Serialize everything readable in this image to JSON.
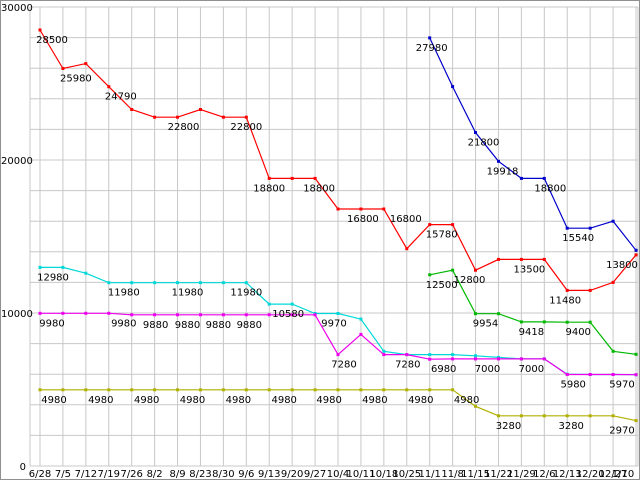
{
  "chart_data": {
    "type": "line",
    "title": "",
    "xlabel": "",
    "ylabel": "",
    "background": "#ffffff",
    "border_color": "#909090",
    "grid_color": "#c8c8c8",
    "label_color": "#000000",
    "legend": "none",
    "y_axis": {
      "min": 0,
      "max": 30000,
      "grid_step": 2000,
      "ticks": [
        {
          "v": 30000,
          "t": "30000"
        },
        {
          "v": 20000,
          "t": "20000"
        },
        {
          "v": 10000,
          "t": "10000"
        },
        {
          "v": 0,
          "t": "0"
        }
      ]
    },
    "categories": [
      "6/28",
      "7/5",
      "7/12",
      "7/19",
      "7/26",
      "8/2",
      "8/9",
      "8/23",
      "8/30",
      "9/6",
      "9/13",
      "9/20",
      "9/27",
      "10/4",
      "10/11",
      "10/18",
      "10/25",
      "11/1",
      "11/8",
      "11/15",
      "11/22",
      "11/29",
      "12/6",
      "12/13",
      "12/20",
      "12/27",
      "1/10"
    ],
    "series": [
      {
        "name": "price-red",
        "color": "#ff0000",
        "values": [
          28500,
          25980,
          26300,
          24790,
          23300,
          22800,
          22800,
          23300,
          22800,
          22800,
          18800,
          18800,
          18800,
          16800,
          16800,
          16800,
          14200,
          15780,
          15780,
          12800,
          13500,
          13500,
          13500,
          11480,
          11480,
          12000,
          13800
        ]
      },
      {
        "name": "price-blue",
        "color": "#0000cc",
        "values": [
          null,
          null,
          null,
          null,
          null,
          null,
          null,
          null,
          null,
          null,
          null,
          null,
          null,
          null,
          null,
          null,
          null,
          27980,
          24800,
          21800,
          19918,
          18800,
          18800,
          15540,
          15540,
          16000,
          14100
        ]
      },
      {
        "name": "price-cyan",
        "color": "#00d8d8",
        "values": [
          12980,
          12980,
          12600,
          11980,
          11980,
          11980,
          11980,
          11980,
          11980,
          11980,
          10580,
          10580,
          9970,
          9970,
          9600,
          7500,
          7280,
          7280,
          7280,
          7200,
          7100,
          7000,
          7000,
          6000,
          5980,
          5980,
          5970
        ]
      },
      {
        "name": "price-magenta",
        "color": "#ee00ee",
        "values": [
          9980,
          9980,
          9980,
          9980,
          9880,
          9880,
          9880,
          9880,
          9880,
          9880,
          9880,
          9880,
          9880,
          7280,
          8600,
          7280,
          7280,
          6980,
          7000,
          7000,
          7000,
          7000,
          7000,
          5980,
          5980,
          5980,
          5970
        ]
      },
      {
        "name": "price-green",
        "color": "#00b800",
        "values": [
          null,
          null,
          null,
          null,
          null,
          null,
          null,
          null,
          null,
          null,
          null,
          null,
          null,
          null,
          null,
          null,
          null,
          12500,
          12800,
          9954,
          9954,
          9418,
          9418,
          9400,
          9400,
          7500,
          7300
        ]
      },
      {
        "name": "price-olive",
        "color": "#b0b000",
        "values": [
          4980,
          4980,
          4980,
          4980,
          4980,
          4980,
          4980,
          4980,
          4980,
          4980,
          4980,
          4980,
          4980,
          4980,
          4980,
          4980,
          4980,
          4980,
          4980,
          3900,
          3280,
          3280,
          3280,
          3280,
          3280,
          3280,
          2970
        ]
      }
    ],
    "point_labels": [
      [
        0,
        0,
        "28500",
        12
      ],
      [
        0,
        1,
        "25980",
        13
      ],
      [
        0,
        3,
        "24790",
        12
      ],
      [
        0,
        6,
        "22800",
        6
      ],
      [
        0,
        9,
        "22800",
        0
      ],
      [
        0,
        10,
        "18800",
        0
      ],
      [
        0,
        12,
        "18800",
        4
      ],
      [
        0,
        14,
        "16800",
        2
      ],
      [
        0,
        15,
        "16800",
        22
      ],
      [
        0,
        17,
        "15780",
        12
      ],
      [
        0,
        19,
        "12800",
        -6
      ],
      [
        0,
        21,
        "13500",
        8
      ],
      [
        0,
        23,
        "11480",
        -2
      ],
      [
        0,
        26,
        "13800",
        -14
      ],
      [
        1,
        17,
        "27980",
        2
      ],
      [
        1,
        19,
        "21800",
        8
      ],
      [
        1,
        20,
        "19918",
        4
      ],
      [
        1,
        22,
        "18800",
        6
      ],
      [
        1,
        24,
        "15540",
        -12
      ],
      [
        2,
        0,
        "12980",
        13
      ],
      [
        2,
        3,
        "11980",
        15
      ],
      [
        2,
        6,
        "11980",
        10
      ],
      [
        2,
        9,
        "11980",
        0
      ],
      [
        2,
        11,
        "10580",
        -4
      ],
      [
        2,
        13,
        "9970",
        -4
      ],
      [
        3,
        0,
        "9980",
        12
      ],
      [
        3,
        3,
        "9980",
        15
      ],
      [
        3,
        5,
        "9880",
        1
      ],
      [
        3,
        6,
        "9880",
        10
      ],
      [
        3,
        8,
        "9880",
        -5
      ],
      [
        3,
        9,
        "9880",
        3
      ],
      [
        3,
        13,
        "7280",
        6
      ],
      [
        3,
        16,
        "7280",
        1
      ],
      [
        3,
        17,
        "6980",
        14
      ],
      [
        3,
        19,
        "7000",
        12
      ],
      [
        3,
        21,
        "7000",
        10
      ],
      [
        3,
        23,
        "5980",
        6
      ],
      [
        3,
        26,
        "5970",
        -6
      ],
      [
        4,
        17,
        "12500",
        12
      ],
      [
        4,
        19,
        "9954",
        10
      ],
      [
        4,
        21,
        "9418",
        10
      ],
      [
        4,
        23,
        "9400",
        11
      ],
      [
        5,
        0,
        "4980",
        14
      ],
      [
        5,
        2,
        "4980",
        15
      ],
      [
        5,
        4,
        "4980",
        15
      ],
      [
        5,
        6,
        "4980",
        15
      ],
      [
        5,
        8,
        "4980",
        15
      ],
      [
        5,
        10,
        "4980",
        15
      ],
      [
        5,
        12,
        "4980",
        14
      ],
      [
        5,
        14,
        "4980",
        14
      ],
      [
        5,
        16,
        "4980",
        14
      ],
      [
        5,
        18,
        "4980",
        14
      ],
      [
        5,
        20,
        "3280",
        10
      ],
      [
        5,
        23,
        "3280",
        4
      ],
      [
        5,
        26,
        "2970",
        -8
      ]
    ]
  }
}
